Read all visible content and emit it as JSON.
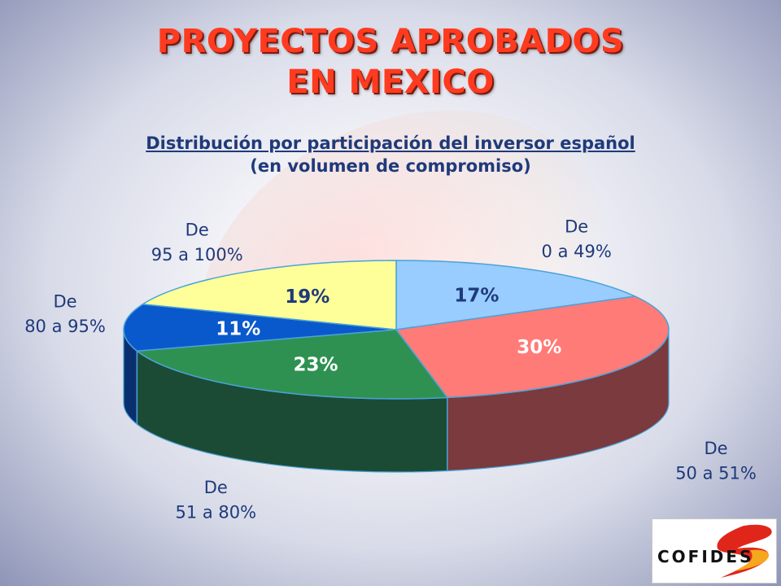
{
  "title": {
    "line1": "PROYECTOS APROBADOS",
    "line2": "EN MEXICO"
  },
  "subtitle": {
    "line1": "Distribución por participación del inversor español",
    "line2": "(en volumen de compromiso)"
  },
  "chart_data": {
    "type": "pie",
    "style": "3d",
    "unit": "%",
    "slices": [
      {
        "label_top": "De",
        "label_bottom": "0 a 49%",
        "value": 17,
        "value_label": "17%",
        "color": "#99ccff",
        "side_color": "#5b86b5",
        "value_color": "#1f3a7a"
      },
      {
        "label_top": "De",
        "label_bottom": "50 a 51%",
        "value": 30,
        "value_label": "30%",
        "color": "#ff7b78",
        "side_color": "#7a3a3e",
        "value_color": "#ffffff"
      },
      {
        "label_top": "De",
        "label_bottom": "51 a 80%",
        "value": 23,
        "value_label": "23%",
        "color": "#2e9152",
        "side_color": "#1c4b35",
        "value_color": "#ffffff"
      },
      {
        "label_top": "De",
        "label_bottom": "80 a 95%",
        "value": 11,
        "value_label": "11%",
        "color": "#0a59cc",
        "side_color": "#0a2f6e",
        "value_color": "#ffffff"
      },
      {
        "label_top": "De",
        "label_bottom": "95 a 100%",
        "value": 19,
        "value_label": "19%",
        "color": "#ffff99",
        "side_color": "#a8a85a",
        "value_color": "#1f3a7a"
      }
    ],
    "legend": "none"
  },
  "logo": {
    "text": "COFIDES",
    "colors": {
      "text": "#111111",
      "accent1": "#e0261b",
      "accent2": "#f5a81c"
    }
  }
}
